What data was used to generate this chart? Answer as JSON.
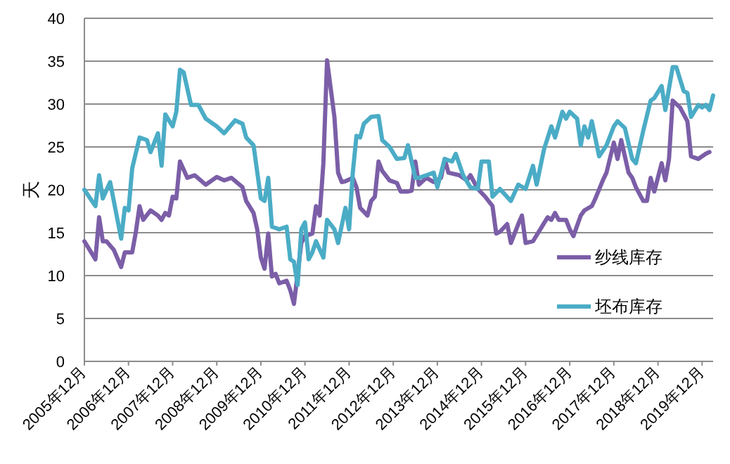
{
  "chart_data": {
    "type": "line",
    "ylabel": "天",
    "xlim": [
      "2005-12",
      "2020-03"
    ],
    "ylim": [
      0,
      40
    ],
    "yticks": [
      0,
      5,
      10,
      15,
      20,
      25,
      30,
      35,
      40
    ],
    "xticks": [
      {
        "value": "2005-12",
        "label": "2005年12月"
      },
      {
        "value": "2006-12",
        "label": "2006年12月"
      },
      {
        "value": "2007-12",
        "label": "2007年12月"
      },
      {
        "value": "2008-12",
        "label": "2008年12月"
      },
      {
        "value": "2009-12",
        "label": "2009年12月"
      },
      {
        "value": "2010-12",
        "label": "2010年12月"
      },
      {
        "value": "2011-12",
        "label": "2011年12月"
      },
      {
        "value": "2012-12",
        "label": "2012年12月"
      },
      {
        "value": "2013-12",
        "label": "2013年12月"
      },
      {
        "value": "2014-12",
        "label": "2014年12月"
      },
      {
        "value": "2015-12",
        "label": "2015年12月"
      },
      {
        "value": "2016-12",
        "label": "2016年12月"
      },
      {
        "value": "2017-12",
        "label": "2017年12月"
      },
      {
        "value": "2018-12",
        "label": "2018年12月"
      },
      {
        "value": "2019-12",
        "label": "2019年12月"
      }
    ],
    "grid": "y",
    "legend": "right",
    "line_style": "solid",
    "series": [
      {
        "name": "纱线库存",
        "color": "#7b5ea7",
        "x": [
          "2005-12",
          "2006-03",
          "2006-04",
          "2006-05",
          "2006-06",
          "2006-08",
          "2006-10",
          "2006-11",
          "2007-01",
          "2007-02",
          "2007-03",
          "2007-04",
          "2007-06",
          "2007-08",
          "2007-09",
          "2007-10",
          "2007-11",
          "2007-12",
          "2008-01",
          "2008-02",
          "2008-04",
          "2008-06",
          "2008-09",
          "2008-12",
          "2009-02",
          "2009-04",
          "2009-07",
          "2009-08",
          "2009-10",
          "2009-11",
          "2009-12",
          "2010-01",
          "2010-02",
          "2010-03",
          "2010-04",
          "2010-05",
          "2010-07",
          "2010-08",
          "2010-09",
          "2010-11",
          "2010-12",
          "2011-02",
          "2011-03",
          "2011-04",
          "2011-05",
          "2011-06",
          "2011-07",
          "2011-08",
          "2011-09",
          "2011-10",
          "2011-11",
          "2012-01",
          "2012-02",
          "2012-03",
          "2012-05",
          "2012-06",
          "2012-07",
          "2012-08",
          "2012-09",
          "2012-11",
          "2013-01",
          "2013-02",
          "2013-04",
          "2013-05",
          "2013-06",
          "2013-07",
          "2013-09",
          "2013-11",
          "2014-01",
          "2014-02",
          "2014-03",
          "2014-06",
          "2014-08",
          "2014-09",
          "2014-11",
          "2015-01",
          "2015-03",
          "2015-04",
          "2015-05",
          "2015-07",
          "2015-08",
          "2015-10",
          "2015-11",
          "2015-12",
          "2016-02",
          "2016-04",
          "2016-06",
          "2016-07",
          "2016-08",
          "2016-09",
          "2016-11",
          "2016-12",
          "2017-01",
          "2017-03",
          "2017-04",
          "2017-06",
          "2017-07",
          "2017-09",
          "2017-10",
          "2017-12",
          "2018-01",
          "2018-02",
          "2018-04",
          "2018-05",
          "2018-06",
          "2018-08",
          "2018-09",
          "2018-10",
          "2018-11",
          "2019-01",
          "2019-02",
          "2019-03",
          "2019-04",
          "2019-06",
          "2019-08",
          "2019-09",
          "2019-11",
          "2020-01",
          "2020-02"
        ],
        "values": [
          14.0,
          11.9,
          16.8,
          14.0,
          14.0,
          13.0,
          11.0,
          12.7,
          12.7,
          15.1,
          18.1,
          16.5,
          17.6,
          17.0,
          16.5,
          17.3,
          17.0,
          19.2,
          19.0,
          23.3,
          21.4,
          21.7,
          20.6,
          21.5,
          21.1,
          21.4,
          20.3,
          18.7,
          17.3,
          15.4,
          12.1,
          10.8,
          14.9,
          9.9,
          10.2,
          9.1,
          9.4,
          8.3,
          6.7,
          13.8,
          14.6,
          14.9,
          18.1,
          17.0,
          23.1,
          35.1,
          31.8,
          28.5,
          22.0,
          20.9,
          21.0,
          21.4,
          20.3,
          17.9,
          17.0,
          18.7,
          19.2,
          23.3,
          22.2,
          21.1,
          20.8,
          19.8,
          19.8,
          19.9,
          23.3,
          20.6,
          21.4,
          20.9,
          21.4,
          23.6,
          22.0,
          21.7,
          21.1,
          21.7,
          20.1,
          19.2,
          18.1,
          14.9,
          15.1,
          16.0,
          13.8,
          16.0,
          17.0,
          13.8,
          14.0,
          15.4,
          16.8,
          16.5,
          17.3,
          16.5,
          16.5,
          15.4,
          14.6,
          17.0,
          17.6,
          18.1,
          19.0,
          21.1,
          22.0,
          25.5,
          23.6,
          25.8,
          22.0,
          21.4,
          20.3,
          18.7,
          18.7,
          21.4,
          19.8,
          23.1,
          21.1,
          23.6,
          30.4,
          29.6,
          28.0,
          23.9,
          23.6,
          24.2,
          24.4
        ]
      },
      {
        "name": "坯布库存",
        "color": "#4bacc6",
        "x": [
          "2005-12",
          "2006-03",
          "2006-04",
          "2006-05",
          "2006-07",
          "2006-10",
          "2006-11",
          "2006-12",
          "2007-01",
          "2007-03",
          "2007-05",
          "2007-06",
          "2007-08",
          "2007-09",
          "2007-10",
          "2007-12",
          "2008-01",
          "2008-02",
          "2008-03",
          "2008-05",
          "2008-07",
          "2008-09",
          "2008-12",
          "2009-02",
          "2009-05",
          "2009-07",
          "2009-08",
          "2009-10",
          "2009-12",
          "2010-01",
          "2010-02",
          "2010-03",
          "2010-05",
          "2010-07",
          "2010-08",
          "2010-09",
          "2010-10",
          "2010-11",
          "2010-12",
          "2011-01",
          "2011-02",
          "2011-03",
          "2011-05",
          "2011-06",
          "2011-08",
          "2011-09",
          "2011-11",
          "2011-12",
          "2012-01",
          "2012-02",
          "2012-03",
          "2012-04",
          "2012-06",
          "2012-08",
          "2012-09",
          "2012-11",
          "2013-01",
          "2013-03",
          "2013-04",
          "2013-06",
          "2013-07",
          "2013-09",
          "2013-11",
          "2013-12",
          "2014-02",
          "2014-04",
          "2014-05",
          "2014-07",
          "2014-09",
          "2014-11",
          "2014-12",
          "2015-02",
          "2015-03",
          "2015-05",
          "2015-08",
          "2015-10",
          "2015-12",
          "2016-02",
          "2016-03",
          "2016-05",
          "2016-07",
          "2016-08",
          "2016-10",
          "2016-11",
          "2016-12",
          "2017-02",
          "2017-03",
          "2017-04",
          "2017-05",
          "2017-06",
          "2017-08",
          "2017-10",
          "2017-12",
          "2018-01",
          "2018-03",
          "2018-05",
          "2018-06",
          "2018-08",
          "2018-10",
          "2018-11",
          "2019-01",
          "2019-02",
          "2019-04",
          "2019-05",
          "2019-07",
          "2019-08",
          "2019-09",
          "2019-11",
          "2019-12",
          "2020-01",
          "2020-02",
          "2020-03"
        ],
        "values": [
          20.0,
          18.1,
          21.7,
          19.0,
          20.9,
          14.3,
          17.9,
          17.6,
          22.5,
          26.1,
          25.8,
          24.4,
          26.6,
          22.8,
          28.8,
          27.4,
          29.1,
          34.0,
          33.7,
          29.9,
          29.9,
          28.3,
          27.4,
          26.6,
          28.1,
          27.7,
          26.1,
          25.2,
          19.0,
          18.7,
          21.4,
          15.7,
          15.4,
          15.7,
          11.9,
          11.6,
          8.9,
          15.4,
          16.2,
          11.9,
          12.7,
          14.0,
          12.1,
          16.5,
          15.4,
          13.8,
          17.9,
          15.4,
          22.0,
          26.3,
          26.1,
          27.7,
          28.5,
          28.6,
          25.8,
          25.0,
          23.6,
          23.7,
          25.2,
          21.4,
          21.4,
          21.7,
          22.0,
          20.3,
          23.6,
          23.3,
          24.2,
          21.7,
          20.3,
          20.1,
          23.3,
          23.3,
          19.2,
          20.1,
          18.7,
          20.6,
          20.1,
          22.8,
          20.6,
          24.7,
          27.4,
          26.1,
          29.1,
          28.3,
          29.1,
          28.3,
          25.2,
          27.4,
          26.1,
          28.0,
          23.9,
          25.2,
          27.4,
          28.0,
          27.2,
          23.6,
          23.1,
          26.9,
          30.4,
          30.7,
          32.1,
          29.3,
          34.3,
          34.3,
          31.5,
          31.3,
          28.5,
          29.9,
          29.6,
          29.9,
          29.3,
          31.0
        ]
      }
    ]
  }
}
